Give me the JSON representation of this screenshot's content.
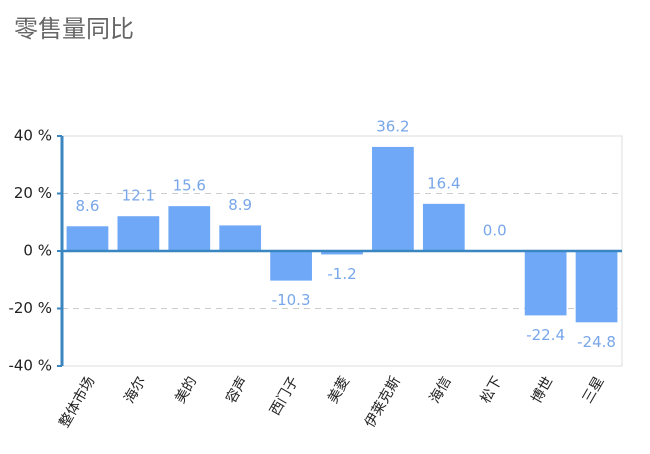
{
  "chart_data": {
    "type": "bar",
    "title": "零售量同比",
    "categories": [
      "整体市场",
      "海尔",
      "美的",
      "容声",
      "西门子",
      "美菱",
      "伊莱克斯",
      "海信",
      "松下",
      "博世",
      "三星"
    ],
    "values": [
      8.6,
      12.1,
      15.6,
      8.9,
      -10.3,
      -1.2,
      36.2,
      16.4,
      0.0,
      -22.4,
      -24.8
    ],
    "value_labels": [
      "8.6",
      "12.1",
      "15.6",
      "8.9",
      "-10.3",
      "-1.2",
      "36.2",
      "16.4",
      "0.0",
      "-22.4",
      "-24.8"
    ],
    "color": "#6fa8f7",
    "ylim": [
      -40,
      40
    ],
    "yticks": [
      {
        "value": 40,
        "label": "40 %"
      },
      {
        "value": 20,
        "label": "20 %"
      },
      {
        "value": 0,
        "label": "0 %"
      },
      {
        "value": -20,
        "label": "-20 %"
      },
      {
        "value": -40,
        "label": "-40 %"
      }
    ],
    "grid": true
  }
}
